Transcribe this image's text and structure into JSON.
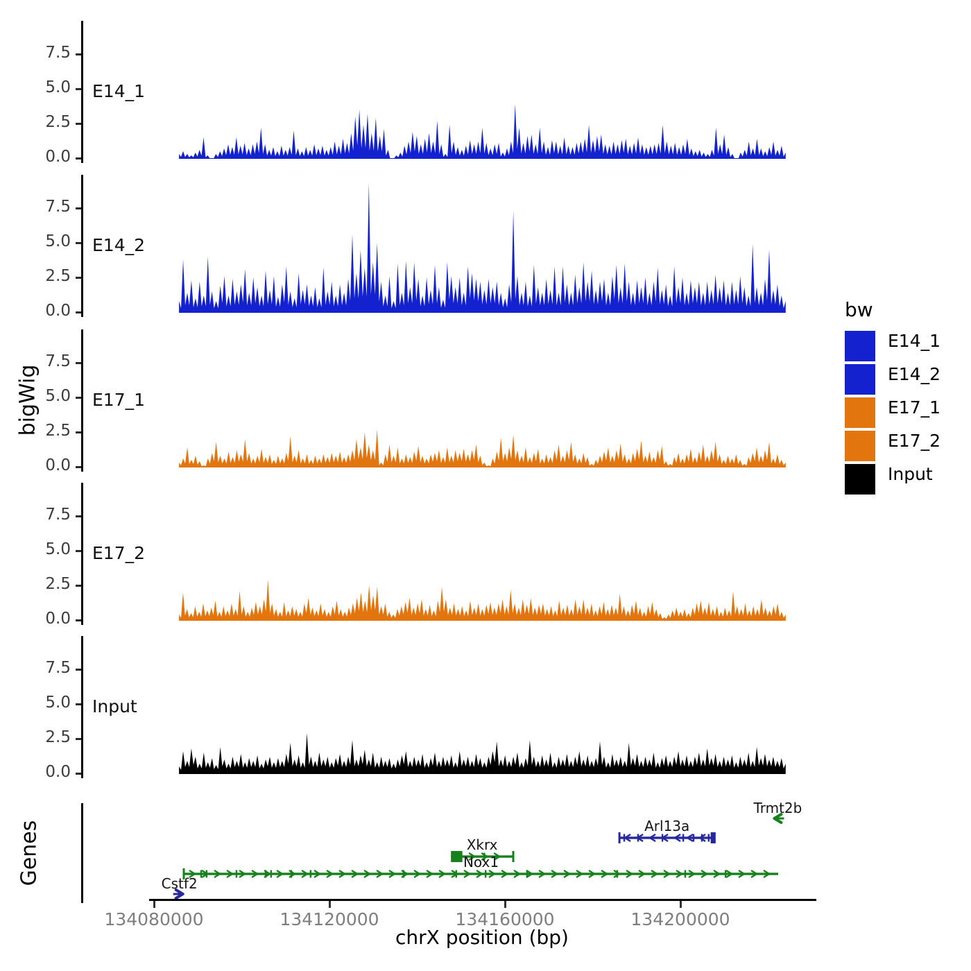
{
  "chart_data": {
    "type": "area",
    "title": "",
    "xlabel": "chrX position (bp)",
    "ylabel": "bigWig",
    "legend_title": "bw",
    "legend_position": "right",
    "grid": false,
    "x_start": 134085700,
    "x_end": 134224000,
    "x_ticks": [
      134080000,
      134120000,
      134160000,
      134200000
    ],
    "ylim": [
      0,
      9.9
    ],
    "y_ticks": [
      0.0,
      2.5,
      5.0,
      7.5
    ],
    "palette": {
      "E14": "#1322ce",
      "E17": "#e2750e",
      "Input": "#000000",
      "gene_green": "#17811c",
      "gene_navy": "#28289e"
    },
    "tracks": [
      {
        "name": "E14_1",
        "color": "#1322ce",
        "valley": 0.3,
        "values": [
          0.3,
          0.5,
          0.3,
          0.2,
          0.4,
          0.6,
          1.5,
          0.2,
          0,
          0.3,
          0.5,
          0.7,
          1.0,
          0.8,
          1.5,
          0.9,
          1.1,
          0.7,
          1.0,
          1.2,
          2.2,
          1.0,
          0.6,
          0.8,
          0.5,
          0.9,
          0.6,
          0.8,
          2.0,
          0.7,
          0.5,
          0.8,
          0.6,
          1.0,
          0.7,
          0.9,
          0.6,
          0.8,
          1.2,
          0.9,
          1.4,
          1.1,
          1.8,
          3.0,
          3.5,
          2.4,
          3.2,
          1.8,
          2.9,
          1.6,
          2.1,
          0.6,
          0,
          0.2,
          0.4,
          0.9,
          1.2,
          1.9,
          1.6,
          1.0,
          1.4,
          1.8,
          1.2,
          2.7,
          1.0,
          0.3,
          2.4,
          1.2,
          0.8,
          0.6,
          0.9,
          1.3,
          1.0,
          1.2,
          2.2,
          1.1,
          0.7,
          1.0,
          1.1,
          0.4,
          0.7,
          1.2,
          3.9,
          2.2,
          1.1,
          1.6,
          1.7,
          1.0,
          2.2,
          1.2,
          0.8,
          1.3,
          1.2,
          0.9,
          1.5,
          0.9,
          0.8,
          1.1,
          1.2,
          1.4,
          2.4,
          1.3,
          1.6,
          1.7,
          1.0,
          0.9,
          1.2,
          1.0,
          1.3,
          1.4,
          0.9,
          1.1,
          1.5,
          1.0,
          0.8,
          0.9,
          1.0,
          1.1,
          2.4,
          1.2,
          0.9,
          1.1,
          0.8,
          1.0,
          1.4,
          0.7,
          0.5,
          0.6,
          0.4,
          0.3,
          0.6,
          2.2,
          1.0,
          1.7,
          0.8,
          0.3,
          0,
          0.4,
          0.6,
          1.2,
          0.7,
          1.4,
          0.7,
          0.5,
          0.8,
          1.2,
          0.6,
          0.9,
          0.4
        ]
      },
      {
        "name": "E14_2",
        "color": "#1322ce",
        "valley": 0.35,
        "values": [
          0.8,
          3.8,
          1.4,
          2.3,
          1.0,
          2.2,
          1.2,
          4.0,
          1.5,
          0.8,
          1.9,
          2.6,
          1.2,
          2.4,
          1.5,
          2.0,
          3.1,
          1.4,
          2.5,
          1.8,
          1.2,
          3.0,
          1.6,
          2.6,
          1.1,
          2.0,
          3.3,
          1.5,
          1.0,
          2.8,
          1.6,
          2.0,
          1.2,
          1.8,
          1.0,
          3.2,
          1.5,
          2.2,
          1.2,
          2.0,
          1.4,
          2.4,
          5.6,
          2.8,
          4.5,
          3.2,
          9.3,
          3.6,
          5.0,
          2.2,
          1.2,
          2.6,
          0.8,
          3.5,
          1.4,
          3.7,
          1.8,
          3.6,
          2.4,
          1.2,
          2.5,
          1.6,
          3.4,
          1.8,
          0.9,
          3.6,
          2.6,
          1.8,
          2.5,
          1.4,
          3.3,
          2.8,
          2.4,
          2.2,
          1.6,
          2.4,
          1.8,
          2.2,
          1.4,
          1.0,
          2.0,
          7.3,
          2.6,
          1.4,
          2.2,
          1.2,
          3.4,
          1.8,
          1.4,
          2.4,
          1.6,
          3.3,
          1.4,
          3.3,
          2.0,
          1.4,
          2.7,
          1.8,
          3.6,
          2.2,
          3.0,
          1.6,
          2.2,
          2.4,
          1.4,
          2.6,
          3.4,
          1.8,
          3.5,
          2.2,
          1.4,
          2.3,
          1.8,
          2.5,
          1.4,
          2.2,
          3.2,
          1.6,
          2.0,
          1.2,
          3.3,
          1.8,
          2.5,
          1.4,
          2.3,
          1.8,
          2.2,
          1.4,
          2.2,
          1.6,
          2.7,
          1.8,
          2.3,
          1.4,
          2.2,
          1.6,
          2.6,
          1.8,
          1.2,
          4.9,
          1.8,
          1.4,
          2.4,
          4.5,
          1.6,
          2.0,
          1.2,
          0.8
        ]
      },
      {
        "name": "E17_1",
        "color": "#e2750e",
        "valley": 0.4,
        "values": [
          0.3,
          0.6,
          1.4,
          0.5,
          0.8,
          0.4,
          0.1,
          0.6,
          1.0,
          1.8,
          0.8,
          0.6,
          1.1,
          0.7,
          1.2,
          0.9,
          2.0,
          1.0,
          0.6,
          0.8,
          1.3,
          0.7,
          0.9,
          0.5,
          0.8,
          0.6,
          1.0,
          2.2,
          0.8,
          1.2,
          0.6,
          0.9,
          0.5,
          0.8,
          0.6,
          0.9,
          0.7,
          1.0,
          0.8,
          1.1,
          0.7,
          0.9,
          1.2,
          2.0,
          1.4,
          2.5,
          1.6,
          1.2,
          2.7,
          0.3,
          0.9,
          1.6,
          0.8,
          1.4,
          0.6,
          0.9,
          0.7,
          1.1,
          1.5,
          0.8,
          0.6,
          0.9,
          1.0,
          1.2,
          0.7,
          1.4,
          0.8,
          1.2,
          1.0,
          1.3,
          0.9,
          1.2,
          1.6,
          0.8,
          0.3,
          0.1,
          0.6,
          1.1,
          2.1,
          1.0,
          1.4,
          2.3,
          1.2,
          0.8,
          1.4,
          0.7,
          1.0,
          1.3,
          0.6,
          0.9,
          0.7,
          1.2,
          1.6,
          0.8,
          1.2,
          1.8,
          0.9,
          0.6,
          1.0,
          0.7,
          0.2,
          0.5,
          0.8,
          1.1,
          1.4,
          0.8,
          1.2,
          1.7,
          0.9,
          0.6,
          1.0,
          1.3,
          1.9,
          0.8,
          1.1,
          0.7,
          1.2,
          1.5,
          0.4,
          0.2,
          0.7,
          1.0,
          0.6,
          0.9,
          1.3,
          0.7,
          1.1,
          1.6,
          0.8,
          1.2,
          1.8,
          0.9,
          0.5,
          0.8,
          0.6,
          0.9,
          0.5,
          0.2,
          0.7,
          1.0,
          1.4,
          0.8,
          1.2,
          1.8,
          0.6,
          0.9,
          0.5,
          0.3
        ]
      },
      {
        "name": "E17_2",
        "color": "#e2750e",
        "valley": 0.4,
        "values": [
          0.4,
          2.0,
          0.8,
          0.5,
          1.0,
          0.6,
          1.2,
          0.7,
          0.9,
          1.4,
          0.6,
          1.0,
          0.7,
          1.2,
          0.8,
          2.1,
          1.0,
          0.6,
          0.9,
          1.3,
          1.0,
          1.5,
          2.9,
          1.2,
          0.8,
          0.6,
          1.3,
          0.7,
          1.0,
          0.8,
          0.6,
          1.2,
          1.6,
          0.9,
          0.7,
          1.2,
          0.8,
          0.6,
          1.0,
          1.4,
          0.8,
          0.6,
          0.9,
          1.2,
          1.6,
          2.0,
          1.4,
          2.5,
          1.8,
          2.4,
          1.0,
          1.2,
          0.6,
          0.4,
          0.8,
          1.0,
          1.3,
          1.6,
          0.9,
          1.2,
          1.5,
          0.8,
          1.1,
          0.7,
          1.4,
          2.4,
          1.5,
          0.9,
          1.2,
          0.8,
          1.0,
          0.7,
          1.4,
          0.9,
          1.2,
          0.8,
          1.1,
          1.3,
          0.9,
          1.2,
          1.5,
          1.0,
          2.2,
          1.2,
          0.9,
          1.5,
          1.1,
          1.6,
          0.9,
          1.1,
          1.2,
          0.8,
          1.0,
          0.7,
          1.4,
          0.9,
          1.1,
          0.8,
          1.5,
          1.0,
          1.5,
          0.9,
          1.2,
          0.7,
          1.0,
          1.3,
          0.8,
          1.1,
          0.9,
          1.9,
          1.0,
          0.7,
          1.1,
          1.4,
          0.9,
          0.6,
          1.0,
          1.3,
          0.8,
          0.5,
          0.2,
          0.4,
          0.7,
          0.9,
          0.6,
          0.8,
          0.5,
          0.9,
          1.2,
          1.4,
          0.9,
          1.3,
          0.8,
          1.0,
          0.6,
          0.9,
          0.7,
          2.1,
          1.0,
          0.8,
          1.2,
          0.7,
          1.0,
          0.8,
          1.5,
          0.9,
          0.7,
          1.0,
          1.2,
          0.6,
          0.4
        ]
      },
      {
        "name": "Input",
        "color": "#000000",
        "valley": 0.5,
        "values": [
          0.5,
          1.6,
          0.9,
          1.8,
          1.2,
          0.7,
          1.5,
          0.8,
          1.1,
          0.6,
          1.9,
          1.0,
          0.7,
          1.2,
          0.9,
          1.4,
          0.8,
          1.1,
          0.9,
          1.3,
          0.7,
          1.0,
          1.2,
          0.8,
          1.1,
          0.9,
          1.4,
          2.2,
          1.0,
          1.3,
          0.8,
          2.9,
          1.2,
          0.9,
          1.5,
          1.0,
          1.2,
          0.8,
          1.1,
          1.4,
          0.9,
          1.2,
          2.4,
          1.0,
          1.3,
          1.7,
          1.0,
          1.5,
          0.8,
          1.2,
          0.9,
          1.1,
          0.7,
          1.0,
          1.3,
          1.6,
          0.9,
          1.2,
          1.0,
          1.4,
          0.8,
          1.1,
          1.5,
          0.9,
          1.2,
          1.0,
          1.3,
          0.8,
          1.6,
          1.0,
          1.2,
          0.9,
          1.4,
          1.1,
          0.8,
          1.2,
          1.6,
          2.3,
          1.0,
          1.3,
          0.9,
          1.2,
          1.5,
          0.8,
          1.1,
          2.4,
          1.2,
          0.9,
          1.3,
          1.0,
          1.5,
          0.8,
          1.2,
          1.0,
          1.4,
          0.9,
          1.2,
          1.6,
          1.0,
          1.3,
          0.9,
          1.1,
          2.3,
          1.2,
          0.8,
          1.4,
          1.0,
          1.2,
          0.9,
          2.2,
          1.1,
          1.4,
          0.9,
          1.2,
          1.0,
          1.5,
          0.8,
          1.1,
          1.3,
          0.9,
          1.2,
          1.6,
          1.0,
          1.3,
          0.9,
          1.2,
          1.5,
          1.0,
          1.8,
          1.1,
          1.4,
          0.9,
          1.2,
          1.0,
          1.3,
          0.8,
          1.2,
          1.0,
          1.5,
          0.9,
          1.9,
          1.1,
          1.4,
          1.0,
          1.2,
          0.9,
          1.1,
          0.7
        ]
      }
    ],
    "genes": {
      "label": "Genes",
      "items": [
        {
          "name": "Trmt2b",
          "color": "#17811c",
          "strand": "-",
          "start": 134221600,
          "end": 134222800,
          "row": 0,
          "style": "marker"
        },
        {
          "name": "Arl13a",
          "color": "#28289e",
          "strand": "+",
          "start": 134186100,
          "end": 134207800,
          "row": 1,
          "style": "body",
          "start_bar": true,
          "end_bar": true,
          "exons": [
            134187200,
            134190350,
            134195900,
            134200650,
            134203000,
            134204900,
            134206450
          ],
          "thick": [
            134206900,
            134207800
          ]
        },
        {
          "name": "Xkrx",
          "color": "#17811c",
          "strand": "-",
          "start": 134147700,
          "end": 134161900,
          "row": 2,
          "style": "body",
          "start_bar": false,
          "end_bar": true,
          "exons": [
            134155300
          ],
          "thick": [
            134147700,
            134150300
          ]
        },
        {
          "name": "Nox1",
          "color": "#17811c",
          "strand": "-",
          "start": 134086800,
          "end": 134222300,
          "row": 3,
          "style": "body",
          "start_bar": true,
          "end_bar": false,
          "exons": [
            134090750,
            134092000,
            134098800,
            134105450,
            134106700,
            134111300,
            134115700,
            134136900,
            134148900,
            134155600,
            134165050,
            134185600,
            134201100,
            134210300
          ],
          "thick": null
        },
        {
          "name": "Cstf2",
          "color": "#28289e",
          "strand": "+",
          "start": 134085200,
          "end": 134086400,
          "row": 4,
          "style": "marker"
        }
      ]
    }
  }
}
